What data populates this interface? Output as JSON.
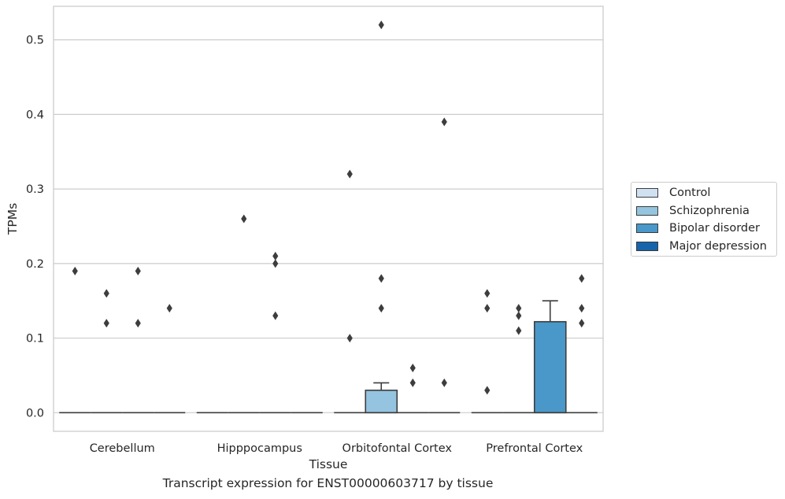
{
  "chart_data": {
    "type": "boxplot",
    "xlabel": "Tissue",
    "ylabel": "TPMs",
    "caption": "Transcript expression for ENST00000603717 by tissue",
    "ylim": [
      -0.025,
      0.545
    ],
    "yticks": [
      0.0,
      0.1,
      0.2,
      0.3,
      0.4,
      0.5
    ],
    "ytick_labels": [
      "0.0",
      "0.1",
      "0.2",
      "0.3",
      "0.4",
      "0.5"
    ],
    "grid": "horizontal",
    "legend_position": "right",
    "categories": [
      "Cerebellum",
      "Hipppocampus",
      "Orbitofontal Cortex",
      "Prefrontal Cortex"
    ],
    "series": [
      {
        "name": "Control",
        "color": "#d0e1f2",
        "boxes": [
          {
            "q1": 0,
            "median": 0,
            "q3": 0,
            "whisker_low": 0,
            "whisker_high": 0,
            "outliers": [
              0.19
            ]
          },
          {
            "q1": 0,
            "median": 0,
            "q3": 0,
            "whisker_low": 0,
            "whisker_high": 0,
            "outliers": []
          },
          {
            "q1": 0,
            "median": 0,
            "q3": 0,
            "whisker_low": 0,
            "whisker_high": 0,
            "outliers": [
              0.32,
              0.1
            ]
          },
          {
            "q1": 0,
            "median": 0,
            "q3": 0,
            "whisker_low": 0,
            "whisker_high": 0,
            "outliers": [
              0.16,
              0.14,
              0.03
            ]
          }
        ]
      },
      {
        "name": "Schizophrenia",
        "color": "#94c4df",
        "boxes": [
          {
            "q1": 0,
            "median": 0,
            "q3": 0,
            "whisker_low": 0,
            "whisker_high": 0,
            "outliers": [
              0.16,
              0.12
            ]
          },
          {
            "q1": 0,
            "median": 0,
            "q3": 0,
            "whisker_low": 0,
            "whisker_high": 0,
            "outliers": [
              0.26
            ]
          },
          {
            "q1": 0,
            "median": 0,
            "q3": 0.03,
            "whisker_low": 0,
            "whisker_high": 0.04,
            "outliers": [
              0.52,
              0.18,
              0.14
            ]
          },
          {
            "q1": 0,
            "median": 0,
            "q3": 0,
            "whisker_low": 0,
            "whisker_high": 0,
            "outliers": [
              0.14,
              0.13,
              0.11
            ]
          }
        ]
      },
      {
        "name": "Bipolar disorder",
        "color": "#4a98c9",
        "boxes": [
          {
            "q1": 0,
            "median": 0,
            "q3": 0,
            "whisker_low": 0,
            "whisker_high": 0,
            "outliers": [
              0.12,
              0.19
            ]
          },
          {
            "q1": 0,
            "median": 0,
            "q3": 0,
            "whisker_low": 0,
            "whisker_high": 0,
            "outliers": [
              0.21,
              0.2,
              0.13
            ]
          },
          {
            "q1": 0,
            "median": 0,
            "q3": 0,
            "whisker_low": 0,
            "whisker_high": 0,
            "outliers": [
              0.06,
              0.04
            ]
          },
          {
            "q1": 0,
            "median": 0,
            "q3": 0.122,
            "whisker_low": 0,
            "whisker_high": 0.15,
            "outliers": []
          }
        ]
      },
      {
        "name": "Major depression",
        "color": "#1764ab",
        "boxes": [
          {
            "q1": 0,
            "median": 0,
            "q3": 0,
            "whisker_low": 0,
            "whisker_high": 0,
            "outliers": [
              0.14
            ]
          },
          {
            "q1": 0,
            "median": 0,
            "q3": 0,
            "whisker_low": 0,
            "whisker_high": 0,
            "outliers": []
          },
          {
            "q1": 0,
            "median": 0,
            "q3": 0,
            "whisker_low": 0,
            "whisker_high": 0,
            "outliers": [
              0.39,
              0.04
            ]
          },
          {
            "q1": 0,
            "median": 0,
            "q3": 0,
            "whisker_low": 0,
            "whisker_high": 0,
            "outliers": [
              0.18,
              0.14,
              0.12
            ]
          }
        ]
      }
    ]
  }
}
